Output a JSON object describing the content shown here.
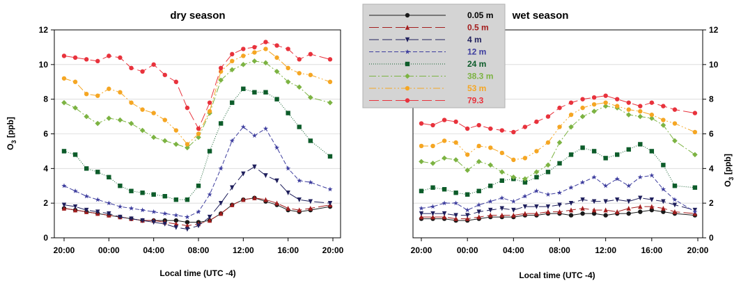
{
  "figure": {
    "xlabel": "Local time (UTC -4)",
    "ylabel": "O3 [ppb]",
    "ylabel_main": "O",
    "ylabel_sub": "3",
    "ylabel_unit": " [ppb]"
  },
  "legend": [
    {
      "label": "0.05 m",
      "color": "#1a1a1a",
      "text_color": "#000000",
      "marker": "circle",
      "dash": ""
    },
    {
      "label": "0.5 m",
      "color": "#a31d1d",
      "text_color": "#a31d1d",
      "marker": "triangle",
      "dash": "14 5"
    },
    {
      "label": "4 m",
      "color": "#1f1f5c",
      "text_color": "#1f1f5c",
      "marker": "triangle-down",
      "dash": "14 5"
    },
    {
      "label": "12 m",
      "color": "#3d3d9e",
      "text_color": "#3d3d9e",
      "marker": "star",
      "dash": "6 3"
    },
    {
      "label": "24 m",
      "color": "#0d5c2a",
      "text_color": "#0d5c2a",
      "marker": "square",
      "dash": "1 2"
    },
    {
      "label": "38.3 m",
      "color": "#7cb342",
      "text_color": "#7cb342",
      "marker": "diamond",
      "dash": "10 3 2 3"
    },
    {
      "label": "53 m",
      "color": "#f5a623",
      "text_color": "#f5a623",
      "marker": "circle",
      "dash": "10 3 2 3 2 3"
    },
    {
      "label": "79.3",
      "color": "#e8323c",
      "text_color": "#e8323c",
      "marker": "circle",
      "dash": "14 5"
    }
  ],
  "chart_data": [
    {
      "type": "line",
      "title": "dry season",
      "xlabel": "Local time (UTC -4)",
      "ylabel": "O3 [ppb]",
      "y_axis_side": "left",
      "ylim": [
        0,
        12
      ],
      "yticks": [
        0,
        2,
        4,
        6,
        8,
        10,
        12
      ],
      "x_ticks": [
        "20:00",
        "00:00",
        "04:00",
        "08:00",
        "12:00",
        "16:00",
        "20:00"
      ],
      "x_hours": [
        0,
        24
      ],
      "series": [
        {
          "name": "0.05 m",
          "x": [
            0,
            1,
            2,
            3,
            4,
            5,
            6,
            7,
            8,
            9,
            10,
            11,
            12,
            13,
            14,
            15,
            16,
            17,
            18,
            19,
            20,
            21,
            22,
            23.75
          ],
          "y": [
            1.7,
            1.6,
            1.5,
            1.4,
            1.3,
            1.2,
            1.1,
            1.0,
            1.0,
            1.0,
            1.0,
            0.9,
            0.9,
            1.0,
            1.4,
            1.9,
            2.2,
            2.3,
            2.1,
            1.9,
            1.6,
            1.5,
            1.6,
            1.8
          ]
        },
        {
          "name": "0.5 m",
          "x": [
            0,
            1,
            2,
            3,
            4,
            5,
            6,
            7,
            8,
            9,
            10,
            11,
            12,
            13,
            14,
            15,
            16,
            17,
            18,
            19,
            20,
            21,
            22,
            23.75
          ],
          "y": [
            1.7,
            1.6,
            1.5,
            1.4,
            1.3,
            1.2,
            1.1,
            1.0,
            1.0,
            0.9,
            0.8,
            0.7,
            0.8,
            1.0,
            1.4,
            1.9,
            2.2,
            2.3,
            2.2,
            2.0,
            1.7,
            1.6,
            1.7,
            1.9
          ]
        },
        {
          "name": "4 m",
          "x": [
            0,
            1,
            2,
            3,
            4,
            5,
            6,
            7,
            8,
            9,
            10,
            11,
            12,
            13,
            14,
            15,
            16,
            17,
            18,
            19,
            20,
            21,
            22,
            23.75
          ],
          "y": [
            1.9,
            1.8,
            1.6,
            1.5,
            1.4,
            1.2,
            1.1,
            1.0,
            0.9,
            0.8,
            0.6,
            0.5,
            0.7,
            1.2,
            2.0,
            2.9,
            3.7,
            4.1,
            3.6,
            3.3,
            2.6,
            2.2,
            2.1,
            2.0
          ]
        },
        {
          "name": "12 m",
          "x": [
            0,
            1,
            2,
            3,
            4,
            5,
            6,
            7,
            8,
            9,
            10,
            11,
            12,
            13,
            14,
            15,
            16,
            17,
            18,
            19,
            20,
            21,
            22,
            23.75
          ],
          "y": [
            3.0,
            2.7,
            2.4,
            2.2,
            2.0,
            1.8,
            1.7,
            1.6,
            1.5,
            1.4,
            1.3,
            1.2,
            1.5,
            2.5,
            4.0,
            5.6,
            6.4,
            5.9,
            6.3,
            5.2,
            4.0,
            3.3,
            3.2,
            2.8
          ]
        },
        {
          "name": "24 m",
          "x": [
            0,
            1,
            2,
            3,
            4,
            5,
            6,
            7,
            8,
            9,
            10,
            11,
            12,
            13,
            14,
            15,
            16,
            17,
            18,
            19,
            20,
            21,
            22,
            23.75
          ],
          "y": [
            5.0,
            4.8,
            4.0,
            3.8,
            3.5,
            3.0,
            2.7,
            2.6,
            2.5,
            2.4,
            2.2,
            2.2,
            3.0,
            5.0,
            6.6,
            7.8,
            8.6,
            8.4,
            8.4,
            8.0,
            7.2,
            6.4,
            5.6,
            4.7
          ]
        },
        {
          "name": "38.3 m",
          "x": [
            0,
            1,
            2,
            3,
            4,
            5,
            6,
            7,
            8,
            9,
            10,
            11,
            12,
            13,
            14,
            15,
            16,
            17,
            18,
            19,
            20,
            21,
            22,
            23.75
          ],
          "y": [
            7.8,
            7.5,
            7.0,
            6.6,
            6.9,
            6.8,
            6.6,
            6.2,
            5.8,
            5.6,
            5.4,
            5.2,
            5.8,
            7.2,
            9.1,
            9.7,
            10.0,
            10.2,
            10.1,
            9.6,
            9.0,
            8.7,
            8.1,
            7.8
          ]
        },
        {
          "name": "53 m",
          "x": [
            0,
            1,
            2,
            3,
            4,
            5,
            6,
            7,
            8,
            9,
            10,
            11,
            12,
            13,
            14,
            15,
            16,
            17,
            18,
            19,
            20,
            21,
            22,
            23.75
          ],
          "y": [
            9.2,
            9.0,
            8.3,
            8.2,
            8.6,
            8.4,
            7.8,
            7.4,
            7.2,
            6.8,
            6.2,
            5.4,
            6.0,
            7.3,
            9.6,
            10.2,
            10.5,
            10.7,
            10.9,
            10.4,
            9.8,
            9.5,
            9.4,
            9.0
          ]
        },
        {
          "name": "79.3",
          "x": [
            0,
            1,
            2,
            3,
            4,
            5,
            6,
            7,
            8,
            9,
            10,
            11,
            12,
            13,
            14,
            15,
            16,
            17,
            18,
            19,
            20,
            21,
            22,
            23.75
          ],
          "y": [
            10.5,
            10.4,
            10.3,
            10.2,
            10.5,
            10.4,
            9.8,
            9.6,
            10.0,
            9.4,
            9.0,
            7.5,
            6.3,
            7.8,
            9.8,
            10.6,
            10.9,
            11.0,
            11.3,
            11.1,
            10.9,
            10.3,
            10.6,
            10.3
          ]
        }
      ]
    },
    {
      "type": "line",
      "title": "wet season",
      "xlabel": "Local time (UTC -4)",
      "ylabel": "O3 [ppb]",
      "y_axis_side": "right",
      "ylim": [
        0,
        12
      ],
      "yticks": [
        0,
        2,
        4,
        6,
        8,
        10,
        12
      ],
      "x_ticks": [
        "20:00",
        "00:00",
        "04:00",
        "08:00",
        "12:00",
        "16:00",
        "20:00"
      ],
      "x_hours": [
        0,
        24
      ],
      "series": [
        {
          "name": "0.05 m",
          "x": [
            0,
            1,
            2,
            3,
            4,
            5,
            6,
            7,
            8,
            9,
            10,
            11,
            12,
            13,
            14,
            15,
            16,
            17,
            18,
            19,
            20,
            21,
            22,
            23.75
          ],
          "y": [
            1.1,
            1.1,
            1.1,
            1.0,
            1.0,
            1.1,
            1.2,
            1.2,
            1.2,
            1.3,
            1.3,
            1.4,
            1.4,
            1.3,
            1.4,
            1.4,
            1.3,
            1.4,
            1.4,
            1.5,
            1.6,
            1.5,
            1.4,
            1.3
          ]
        },
        {
          "name": "0.5 m",
          "x": [
            0,
            1,
            2,
            3,
            4,
            5,
            6,
            7,
            8,
            9,
            10,
            11,
            12,
            13,
            14,
            15,
            16,
            17,
            18,
            19,
            20,
            21,
            22,
            23.75
          ],
          "y": [
            1.2,
            1.2,
            1.2,
            1.1,
            1.1,
            1.2,
            1.3,
            1.3,
            1.3,
            1.4,
            1.4,
            1.5,
            1.5,
            1.6,
            1.7,
            1.6,
            1.6,
            1.5,
            1.7,
            1.8,
            1.8,
            1.7,
            1.5,
            1.4
          ]
        },
        {
          "name": "4 m",
          "x": [
            0,
            1,
            2,
            3,
            4,
            5,
            6,
            7,
            8,
            9,
            10,
            11,
            12,
            13,
            14,
            15,
            16,
            17,
            18,
            19,
            20,
            21,
            22,
            23.75
          ],
          "y": [
            1.4,
            1.4,
            1.4,
            1.3,
            1.3,
            1.5,
            1.6,
            1.7,
            1.6,
            1.8,
            1.8,
            1.8,
            1.9,
            2.0,
            2.2,
            2.1,
            2.1,
            2.2,
            2.1,
            2.3,
            2.2,
            2.1,
            1.9,
            1.6
          ]
        },
        {
          "name": "12 m",
          "x": [
            0,
            1,
            2,
            3,
            4,
            5,
            6,
            7,
            8,
            9,
            10,
            11,
            12,
            13,
            14,
            15,
            16,
            17,
            18,
            19,
            20,
            21,
            22,
            23.75
          ],
          "y": [
            1.7,
            1.8,
            2.0,
            2.0,
            1.6,
            1.9,
            2.1,
            2.3,
            2.1,
            2.4,
            2.7,
            2.5,
            2.6,
            2.9,
            3.2,
            3.5,
            3.0,
            3.4,
            3.0,
            3.5,
            3.6,
            2.8,
            2.2,
            1.5
          ]
        },
        {
          "name": "24 m",
          "x": [
            0,
            1,
            2,
            3,
            4,
            5,
            6,
            7,
            8,
            9,
            10,
            11,
            12,
            13,
            14,
            15,
            16,
            17,
            18,
            19,
            20,
            21,
            22,
            23.75
          ],
          "y": [
            2.7,
            2.9,
            2.8,
            2.6,
            2.5,
            2.7,
            3.0,
            3.3,
            3.4,
            3.2,
            3.5,
            3.8,
            4.3,
            4.8,
            5.2,
            5.0,
            4.6,
            4.8,
            5.1,
            5.4,
            5.0,
            4.2,
            3.0,
            2.9
          ]
        },
        {
          "name": "38.3 m",
          "x": [
            0,
            1,
            2,
            3,
            4,
            5,
            6,
            7,
            8,
            9,
            10,
            11,
            12,
            13,
            14,
            15,
            16,
            17,
            18,
            19,
            20,
            21,
            22,
            23.75
          ],
          "y": [
            4.4,
            4.3,
            4.6,
            4.5,
            3.9,
            4.4,
            4.2,
            3.8,
            3.5,
            3.4,
            3.8,
            4.2,
            5.5,
            6.4,
            7.0,
            7.3,
            7.6,
            7.5,
            7.1,
            7.0,
            6.9,
            6.5,
            5.6,
            4.8
          ]
        },
        {
          "name": "53 m",
          "x": [
            0,
            1,
            2,
            3,
            4,
            5,
            6,
            7,
            8,
            9,
            10,
            11,
            12,
            13,
            14,
            15,
            16,
            17,
            18,
            19,
            20,
            21,
            22,
            23.75
          ],
          "y": [
            5.3,
            5.3,
            5.6,
            5.5,
            4.8,
            5.3,
            5.2,
            4.9,
            4.5,
            4.6,
            5.0,
            5.5,
            6.4,
            7.1,
            7.5,
            7.7,
            7.8,
            7.6,
            7.4,
            7.3,
            7.1,
            6.8,
            6.6,
            6.1
          ]
        },
        {
          "name": "79.3",
          "x": [
            0,
            1,
            2,
            3,
            4,
            5,
            6,
            7,
            8,
            9,
            10,
            11,
            12,
            13,
            14,
            15,
            16,
            17,
            18,
            19,
            20,
            21,
            22,
            23.75
          ],
          "y": [
            6.6,
            6.5,
            6.8,
            6.7,
            6.3,
            6.5,
            6.3,
            6.2,
            6.1,
            6.4,
            6.7,
            7.0,
            7.5,
            7.8,
            8.0,
            8.1,
            8.2,
            8.0,
            7.8,
            7.6,
            7.8,
            7.6,
            7.4,
            7.2
          ]
        }
      ]
    }
  ]
}
